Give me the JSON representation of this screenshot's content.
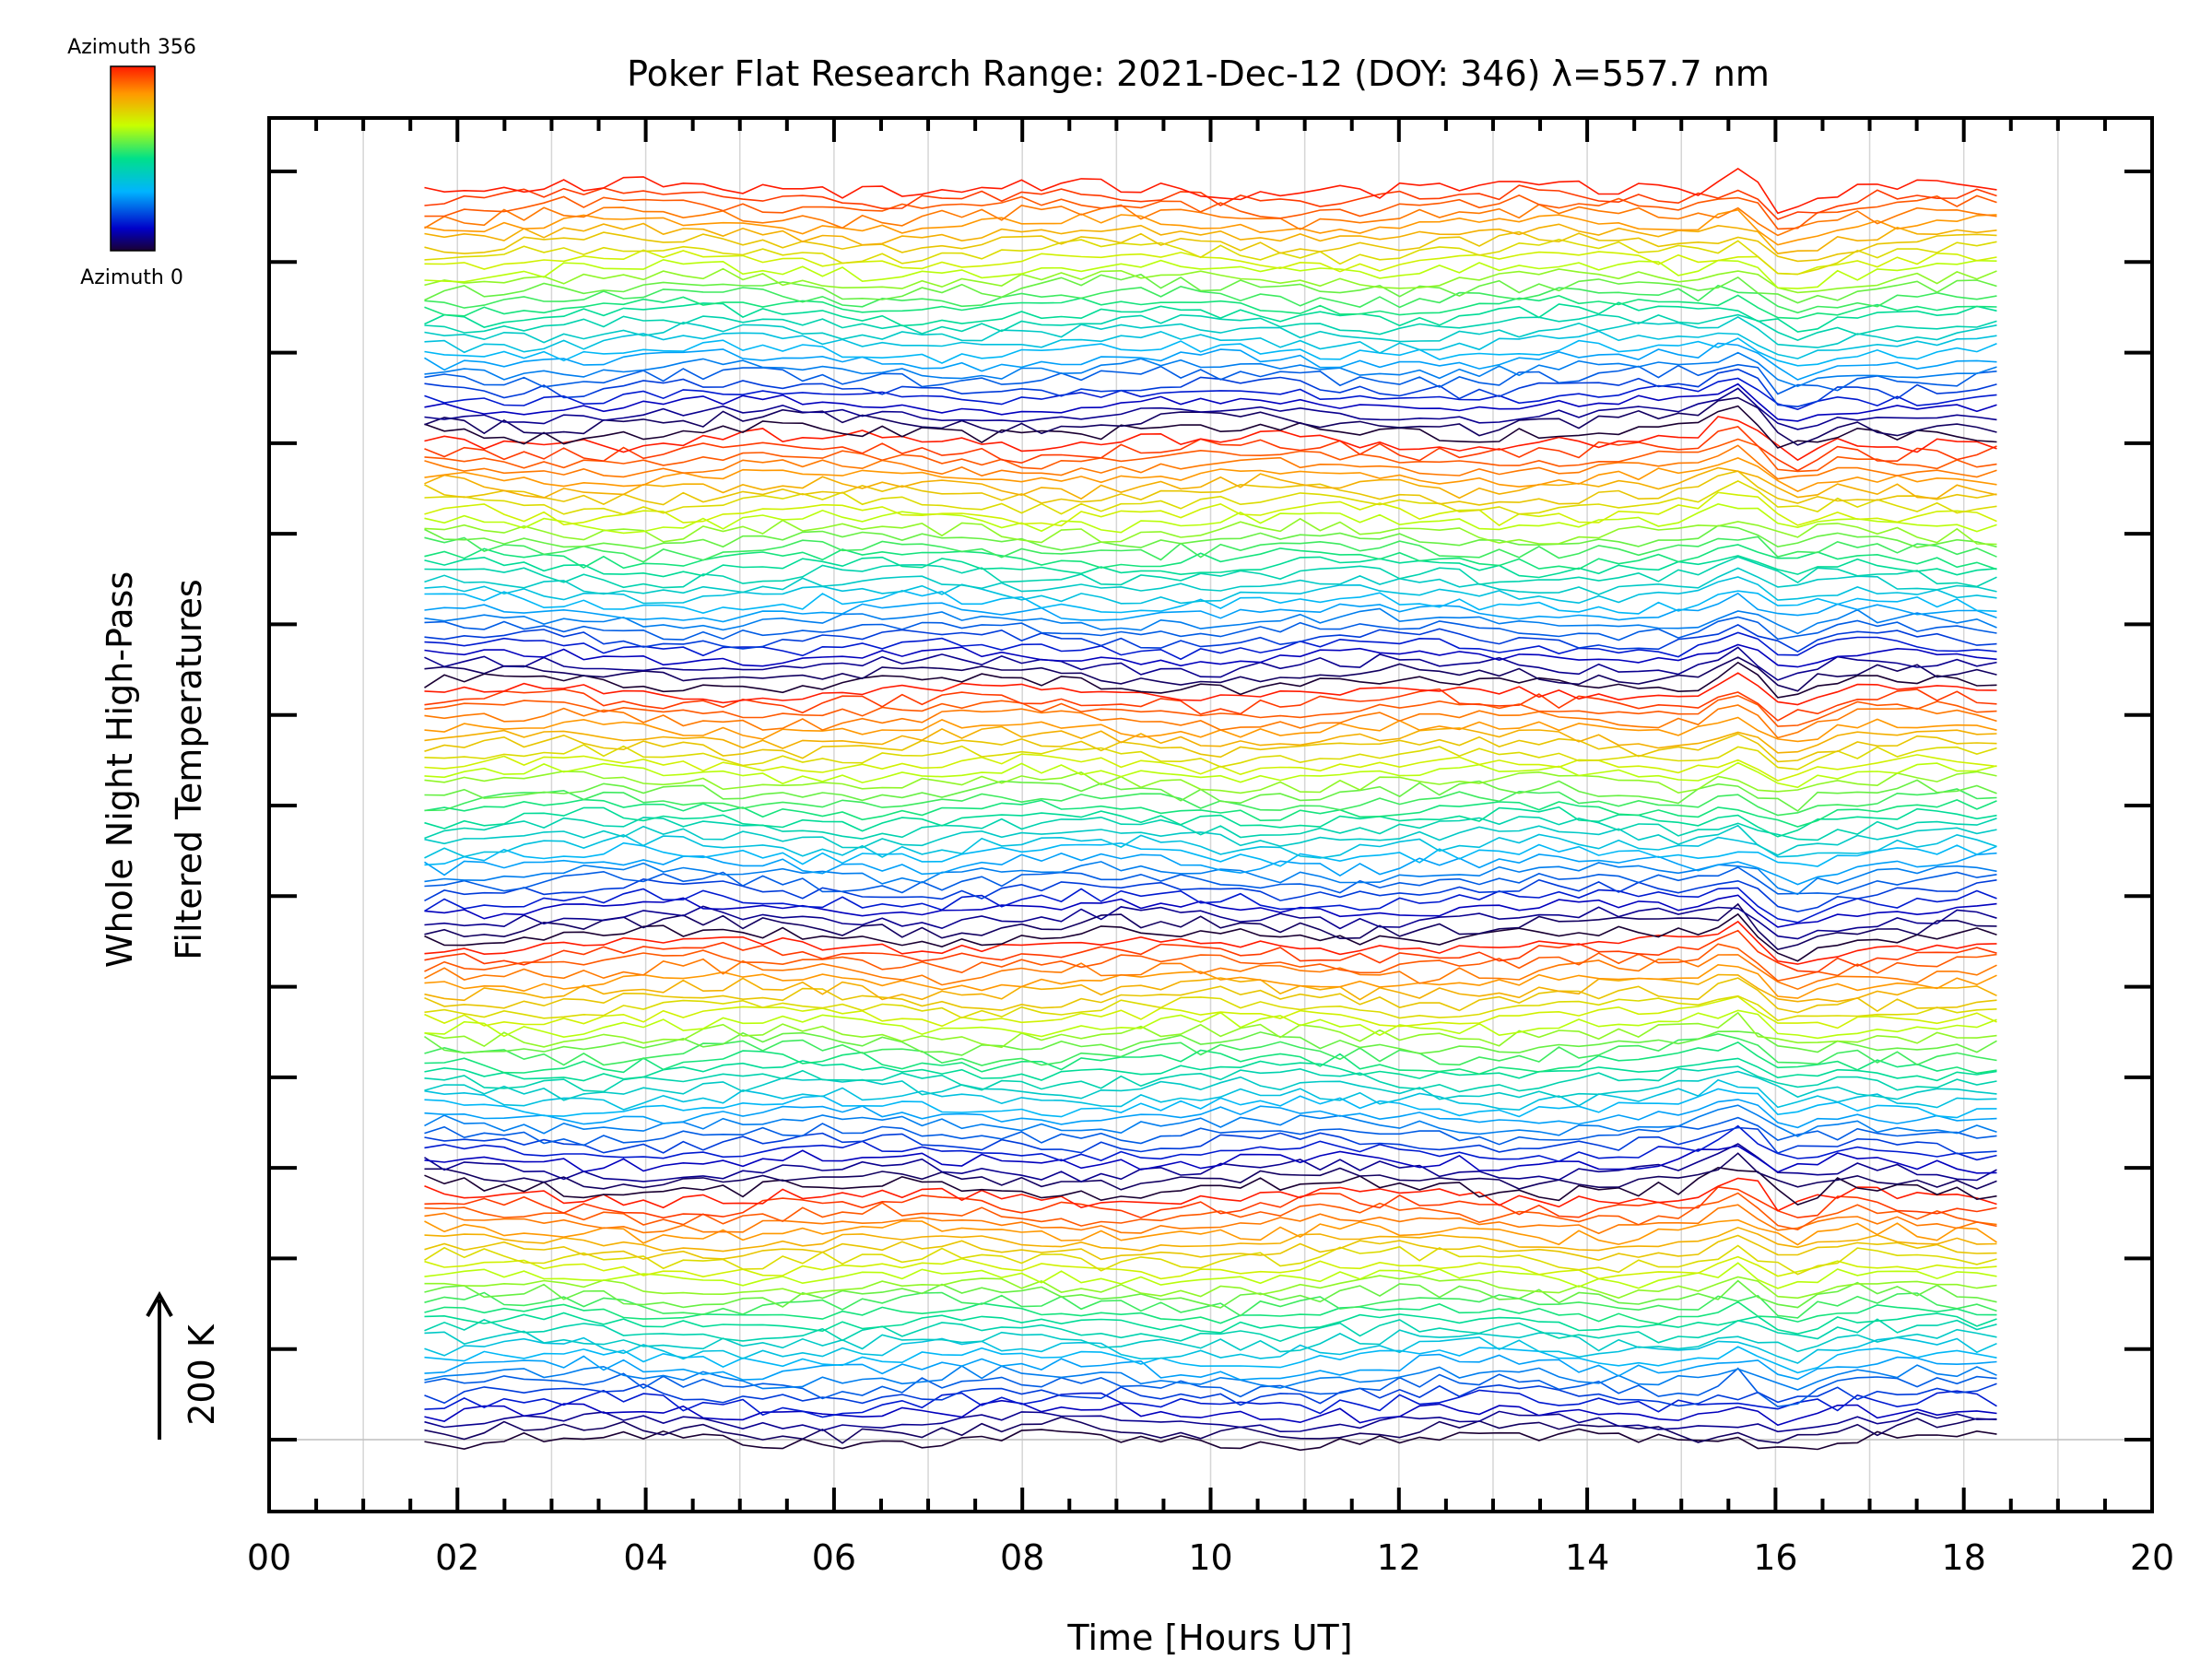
{
  "chart_data": {
    "type": "line",
    "title": "Poker Flat Research Range: 2021-Dec-12 (DOY: 346) λ=557.7 nm",
    "xlabel": "Time [Hours UT]",
    "ylabel_line1": "Whole Night High-Pass",
    "ylabel_line2": "Filtered Temperatures",
    "xlim": [
      0,
      20
    ],
    "xticks": [
      "00",
      "02",
      "04",
      "06",
      "08",
      "10",
      "12",
      "14",
      "16",
      "18",
      "20"
    ],
    "data_time_range_hours": [
      1.65,
      18.35
    ],
    "scale_bar": {
      "label": "200 K",
      "arrow": "up"
    },
    "colorbar": {
      "top_label": "Azimuth 356",
      "bottom_label": "Azimuth 0",
      "colormap": "rainbow",
      "min": 0,
      "max": 356
    },
    "series_description": "Stacked high-pass filtered temperature traces, one per azimuth, colored by azimuth (0 to 356)",
    "n_series": 140,
    "notable_feature": {
      "time_hours": 15.6,
      "description": "sharp dip near 15.6 UT visible across traces"
    }
  }
}
